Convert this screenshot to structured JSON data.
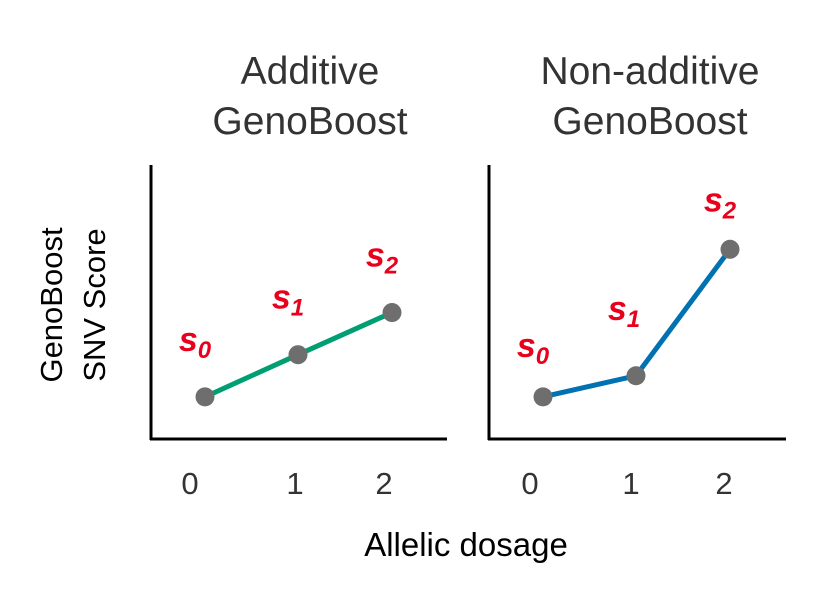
{
  "chart_data": [
    {
      "type": "line",
      "title_lines": [
        "Additive",
        "GenoBoost"
      ],
      "x": [
        0,
        1,
        2
      ],
      "values": [
        1.0,
        2.0,
        3.0
      ],
      "point_labels": [
        {
          "base": "s",
          "sub": "0"
        },
        {
          "base": "s",
          "sub": "1"
        },
        {
          "base": "s",
          "sub": "2"
        }
      ],
      "tick_labels": [
        "0",
        "1",
        "2"
      ],
      "ylim": [
        0,
        6.5
      ],
      "line_color": "#009E73"
    },
    {
      "type": "line",
      "title_lines": [
        "Non-additive",
        "GenoBoost"
      ],
      "x": [
        0,
        1,
        2
      ],
      "values": [
        1.0,
        1.5,
        4.5
      ],
      "point_labels": [
        {
          "base": "s",
          "sub": "0"
        },
        {
          "base": "s",
          "sub": "1"
        },
        {
          "base": "s",
          "sub": "2"
        }
      ],
      "tick_labels": [
        "0",
        "1",
        "2"
      ],
      "ylim": [
        0,
        6.5
      ],
      "line_color": "#0072B2"
    }
  ],
  "shared": {
    "xlabel": "Allelic dosage",
    "ylabel_lines": [
      "GenoBoost",
      "SNV Score"
    ],
    "point_color": "#6E6E6E",
    "label_color": "#E8001C",
    "axis_color": "#000000"
  }
}
